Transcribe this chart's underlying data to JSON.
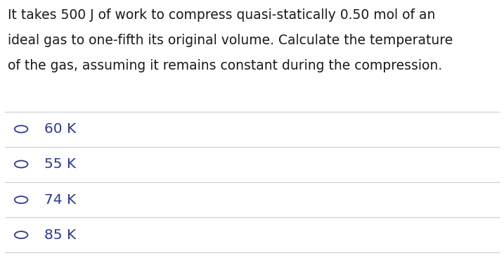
{
  "question_lines": [
    "It takes 500 J of work to compress quasi-statically 0.50 mol of an",
    "ideal gas to one-fifth its original volume. Calculate the temperature",
    "of the gas, assuming it remains constant during the compression."
  ],
  "options": [
    "60 K",
    "55 K",
    "74 K",
    "85 K"
  ],
  "bg_color": "#ffffff",
  "question_color": "#1a1a1a",
  "option_color": "#2d3a8c",
  "line_color": "#cccccc",
  "question_fontsize": 13.5,
  "option_fontsize": 14.5,
  "fig_width": 7.17,
  "fig_height": 3.84
}
